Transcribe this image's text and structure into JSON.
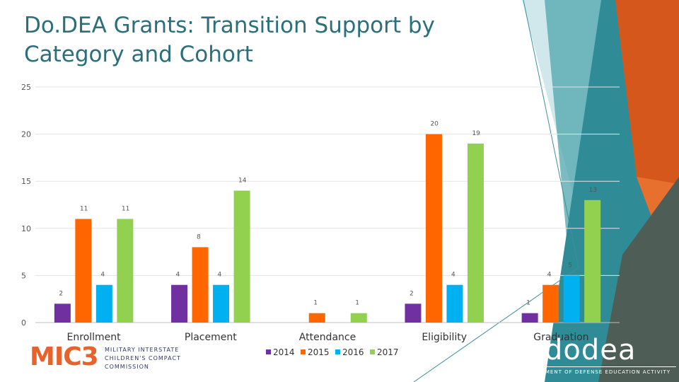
{
  "slide": {
    "title": "Do.DEA Grants: Transition Support by Category and Cohort"
  },
  "colors": {
    "title": "#2a6f7a",
    "deco_teal_dark": "#2f8c96",
    "deco_teal_mid": "#4fa6ae",
    "deco_teal_light": "#a9d5da",
    "deco_orange": "#d5571c",
    "deco_gray": "#4f5d57"
  },
  "chart_data": {
    "type": "bar",
    "title": "",
    "xlabel": "",
    "ylabel": "",
    "ylim": [
      0,
      25
    ],
    "yticks": [
      0,
      5,
      10,
      15,
      20,
      25
    ],
    "grid": true,
    "legend_position": "bottom",
    "categories": [
      "Enrollment",
      "Placement",
      "Attendance",
      "Eligibility",
      "Graduation"
    ],
    "series": [
      {
        "name": "2014",
        "color": "#7030a0",
        "values": [
          2,
          4,
          0,
          2,
          1
        ]
      },
      {
        "name": "2015",
        "color": "#ff6600",
        "values": [
          11,
          8,
          1,
          20,
          4
        ]
      },
      {
        "name": "2016",
        "color": "#00b0f0",
        "values": [
          4,
          4,
          0,
          4,
          5
        ]
      },
      {
        "name": "2017",
        "color": "#92d050",
        "values": [
          11,
          14,
          1,
          19,
          13
        ]
      }
    ]
  },
  "logos": {
    "mic3": {
      "mark": "MIC3",
      "lines": [
        "MILITARY INTERSTATE",
        "CHILDREN'S COMPACT",
        "COMMISSION"
      ]
    },
    "dodea": {
      "wordmark": "dodea",
      "tagline": "DEPARTMENT OF DEFENSE EDUCATION ACTIVITY"
    }
  }
}
